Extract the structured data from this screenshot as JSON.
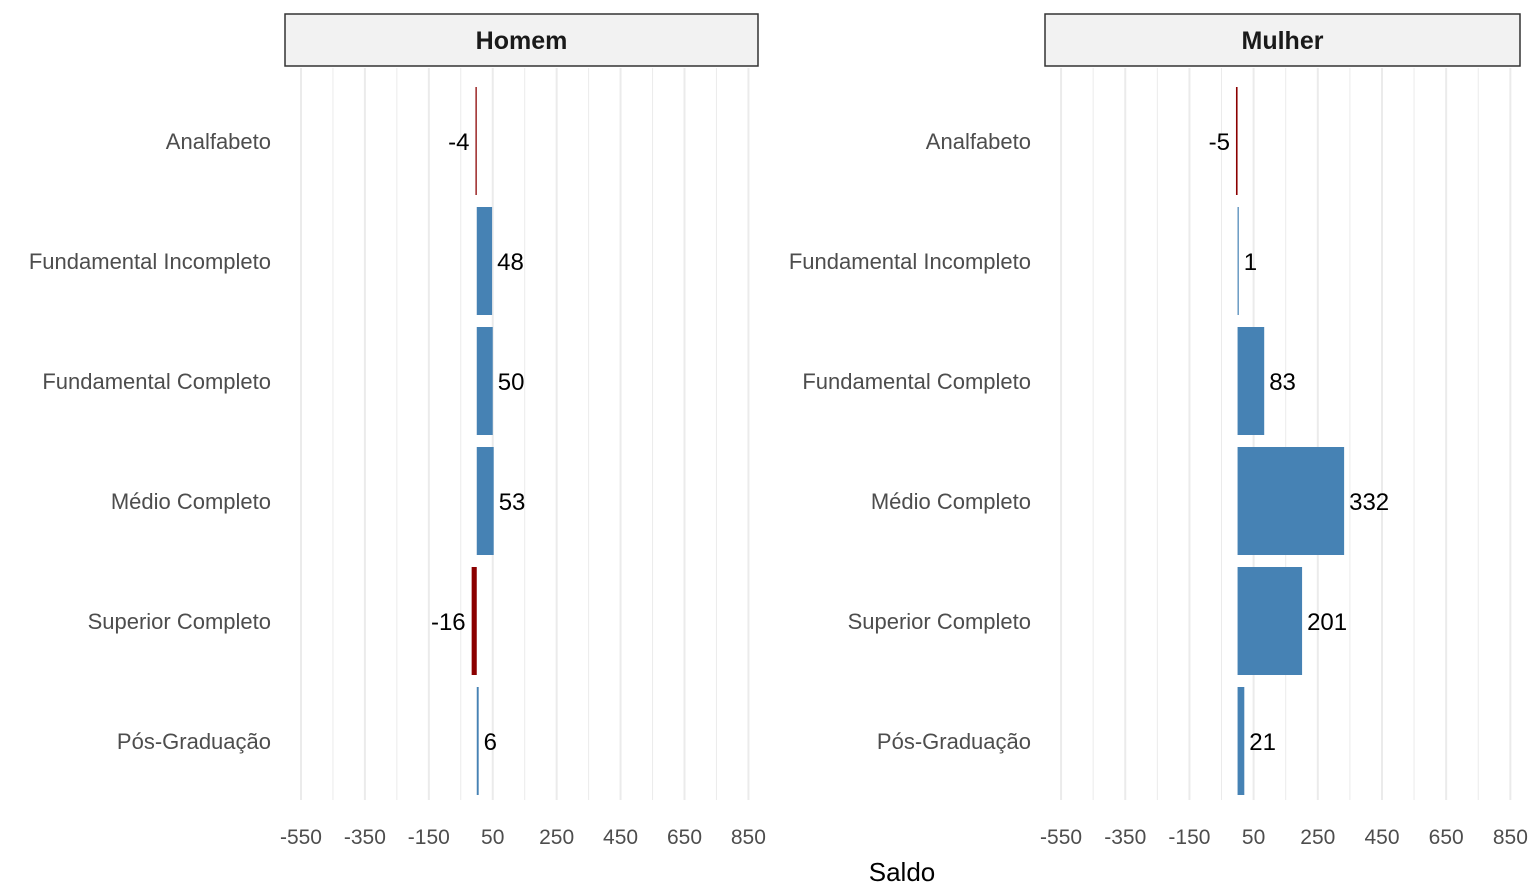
{
  "chart_data": {
    "type": "bar",
    "orientation": "horizontal",
    "xlabel": "Saldo",
    "ylabel": "",
    "xlim": [
      -600,
      880
    ],
    "x_ticks": [
      -550,
      -450,
      -350,
      -250,
      -150,
      -50,
      50,
      150,
      250,
      350,
      450,
      550,
      650,
      750,
      850
    ],
    "x_tick_labels": [
      {
        "value": -550,
        "label": "-550"
      },
      {
        "value": -350,
        "label": "-350"
      },
      {
        "value": -150,
        "label": "-150"
      },
      {
        "value": 50,
        "label": "50"
      },
      {
        "value": 250,
        "label": "250"
      },
      {
        "value": 450,
        "label": "450"
      },
      {
        "value": 650,
        "label": "650"
      },
      {
        "value": 850,
        "label": "850"
      }
    ],
    "categories": [
      "Analfabeto",
      "Fundamental Incompleto",
      "Fundamental Completo",
      "Médio Completo",
      "Superior Completo",
      "Pós-Graduação"
    ],
    "grid": "vertical",
    "colors": {
      "positive": "#4682b4",
      "negative": "#8b0000"
    },
    "facets": [
      {
        "title": "Homem",
        "values": [
          -4,
          48,
          50,
          53,
          -16,
          6
        ],
        "labels": [
          "-4",
          "48",
          "50",
          "53",
          "-16",
          "6"
        ]
      },
      {
        "title": "Mulher",
        "values": [
          -5,
          1,
          83,
          332,
          201,
          21
        ],
        "labels": [
          "-5",
          "1",
          "83",
          "332",
          "201",
          "21"
        ]
      }
    ]
  }
}
